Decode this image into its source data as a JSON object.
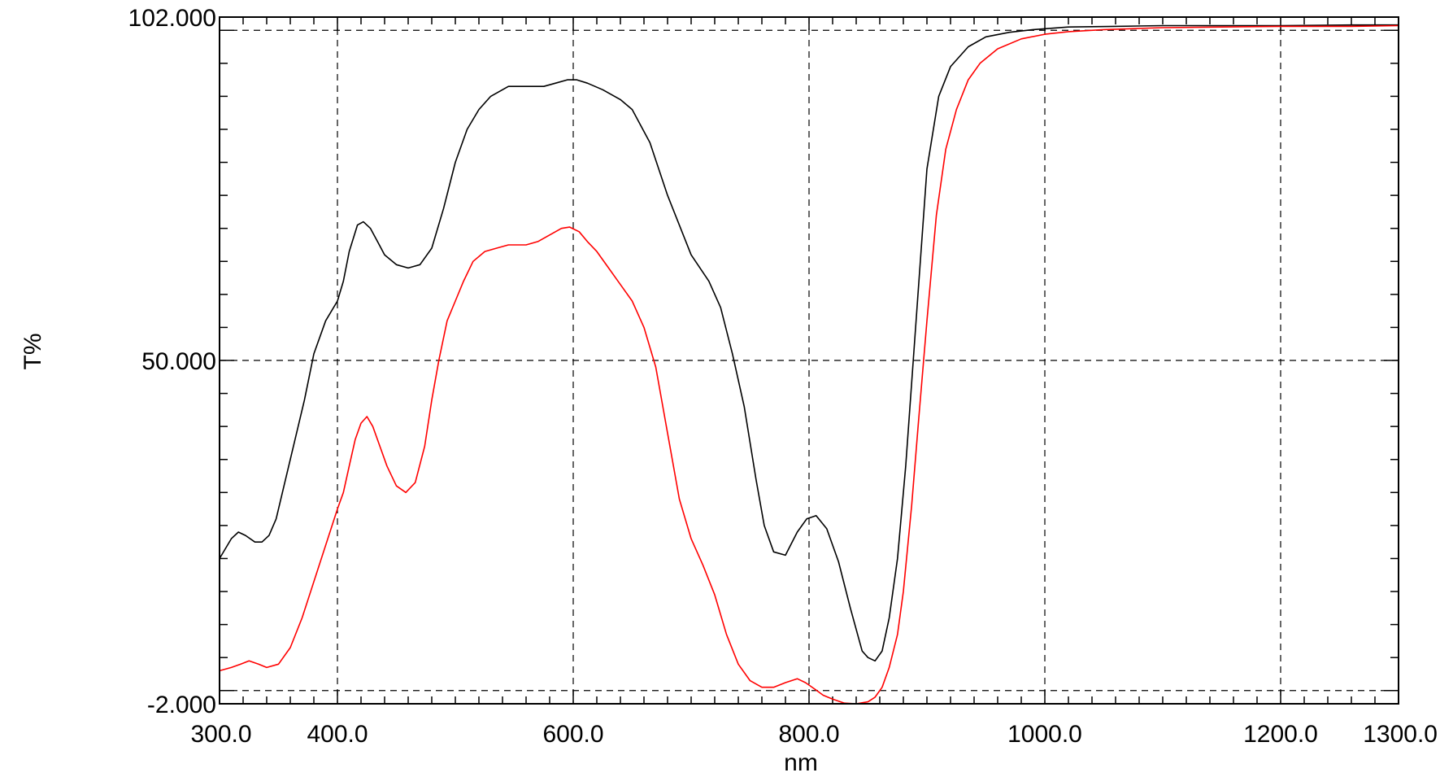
{
  "chart_data": {
    "type": "line",
    "xlabel": "nm",
    "ylabel": "T%",
    "xlim": [
      300,
      1300
    ],
    "ylim": [
      -2,
      102
    ],
    "grid": true,
    "xticks": [
      {
        "value": 300,
        "label": "300.0"
      },
      {
        "value": 400,
        "label": "400.0"
      },
      {
        "value": 600,
        "label": "600.0"
      },
      {
        "value": 800,
        "label": "800.0"
      },
      {
        "value": 1000,
        "label": "1000.0"
      },
      {
        "value": 1200,
        "label": "1200.0"
      },
      {
        "value": 1300,
        "label": "1300.0"
      }
    ],
    "xgrid": [
      400,
      600,
      800,
      1000,
      1200
    ],
    "xminor": [
      320,
      340,
      360,
      380,
      420,
      440,
      460,
      480,
      500,
      520,
      540,
      560,
      580,
      620,
      640,
      660,
      680,
      700,
      720,
      740,
      760,
      780,
      820,
      840,
      860,
      880,
      900,
      920,
      940,
      960,
      980,
      1020,
      1040,
      1060,
      1080,
      1100,
      1120,
      1140,
      1160,
      1180,
      1220,
      1240,
      1260,
      1280
    ],
    "yticks": [
      {
        "value": 102,
        "label": "102.000"
      },
      {
        "value": 50,
        "label": "50.000"
      },
      {
        "value": -2,
        "label": "-2.000"
      }
    ],
    "ygrid": [
      100,
      50,
      0
    ],
    "yminor": [
      5,
      10,
      15,
      20,
      25,
      30,
      35,
      40,
      45,
      55,
      60,
      65,
      70,
      75,
      80,
      85,
      90,
      95
    ],
    "series": [
      {
        "color": "#000000",
        "x": [
          300,
          310,
          316,
          322,
          330,
          336,
          342,
          348,
          356,
          364,
          372,
          380,
          390,
          400,
          405,
          410,
          417,
          422,
          428,
          434,
          440,
          450,
          460,
          470,
          480,
          490,
          500,
          510,
          520,
          530,
          545,
          560,
          575,
          585,
          595,
          603,
          612,
          625,
          640,
          650,
          665,
          680,
          700,
          715,
          725,
          735,
          745,
          755,
          762,
          770,
          780,
          790,
          798,
          806,
          815,
          825,
          835,
          845,
          850,
          856,
          862,
          868,
          875,
          882,
          890,
          900,
          910,
          920,
          935,
          950,
          970,
          990,
          1020,
          1060,
          1100,
          1150,
          1200,
          1260,
          1300
        ],
        "y": [
          20,
          23,
          24,
          23.5,
          22.5,
          22.5,
          23.5,
          26,
          32,
          38,
          44,
          51,
          56,
          59,
          62,
          66.5,
          70.5,
          71,
          70,
          68,
          66,
          64.5,
          64,
          64.5,
          67,
          73,
          80,
          85,
          88,
          90,
          91.5,
          91.5,
          91.5,
          92,
          92.5,
          92.5,
          92,
          91,
          89.5,
          88,
          83,
          75,
          66,
          62,
          58,
          51,
          43,
          32,
          25,
          21,
          20.5,
          24,
          26,
          26.5,
          24.5,
          19.5,
          12.5,
          6,
          5,
          4.5,
          6,
          11,
          20,
          34,
          54,
          79,
          90,
          94.5,
          97.5,
          99,
          99.7,
          100.1,
          100.5,
          100.6,
          100.7,
          100.7,
          100.7,
          100.8,
          100.8
        ]
      },
      {
        "color": "#ff0000",
        "x": [
          300,
          310,
          318,
          325,
          333,
          340,
          350,
          360,
          370,
          380,
          390,
          400,
          405,
          410,
          415,
          420,
          425,
          430,
          436,
          442,
          450,
          458,
          466,
          474,
          480,
          486,
          493,
          500,
          507,
          515,
          525,
          535,
          545,
          552,
          560,
          570,
          580,
          590,
          597,
          605,
          612,
          620,
          630,
          640,
          650,
          660,
          670,
          680,
          690,
          700,
          710,
          720,
          730,
          740,
          750,
          760,
          770,
          780,
          790,
          797,
          805,
          812,
          820,
          830,
          840,
          850,
          856,
          862,
          868,
          875,
          880,
          887,
          893,
          900,
          908,
          916,
          925,
          935,
          945,
          960,
          980,
          1000,
          1020,
          1050,
          1100,
          1150,
          1200,
          1260,
          1300
        ],
        "y": [
          3,
          3.5,
          4,
          4.5,
          4,
          3.5,
          4,
          6.5,
          11,
          16.5,
          22,
          27.5,
          30,
          34,
          38,
          40.5,
          41.5,
          40,
          37,
          34,
          31,
          30,
          31.5,
          37,
          44,
          50,
          56,
          59,
          62,
          65,
          66.5,
          67,
          67.5,
          67.5,
          67.5,
          68,
          69,
          70,
          70.2,
          69.5,
          68,
          66.5,
          64,
          61.5,
          59,
          55,
          49,
          39,
          29,
          23,
          19,
          14.5,
          8.5,
          4,
          1.5,
          0.5,
          0.5,
          1.2,
          1.8,
          1.2,
          0.2,
          -0.7,
          -1.3,
          -1.9,
          -2,
          -1.7,
          -1,
          0.5,
          3.5,
          8.5,
          15,
          28,
          41,
          56,
          72,
          82,
          88,
          92.5,
          95,
          97.2,
          98.7,
          99.4,
          99.8,
          100.1,
          100.4,
          100.5,
          100.6,
          100.6,
          100.7
        ]
      }
    ]
  }
}
